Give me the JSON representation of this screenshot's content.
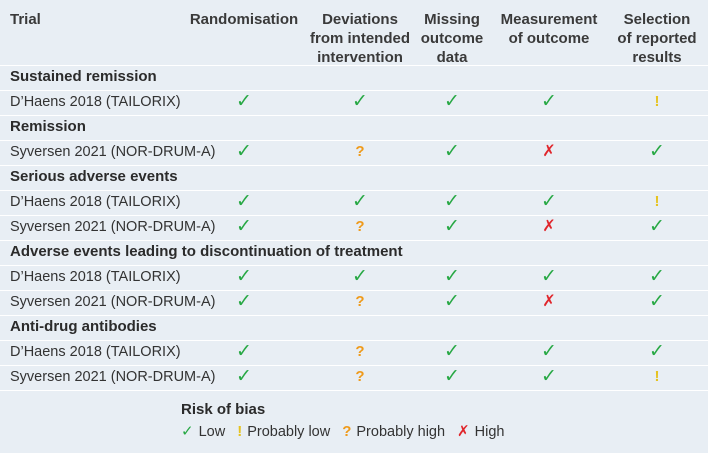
{
  "header": {
    "trial": "Trial",
    "columns": [
      {
        "lines": [
          "Randomisation"
        ]
      },
      {
        "lines": [
          "Deviations",
          "from intended",
          "intervention"
        ]
      },
      {
        "lines": [
          "Missing",
          "outcome",
          "data"
        ]
      },
      {
        "lines": [
          "Measurement",
          "of outcome"
        ]
      },
      {
        "lines": [
          "Selection",
          "of reported",
          "results"
        ]
      }
    ]
  },
  "symbols": {
    "low": {
      "glyph": "✓",
      "color": "#27a844"
    },
    "probably_low": {
      "glyph": "!",
      "color": "#e6c320"
    },
    "probably_high": {
      "glyph": "?",
      "color": "#ef9a1a"
    },
    "high": {
      "glyph": "✗",
      "color": "#e0252b"
    }
  },
  "sections": [
    {
      "title": "Sustained remission",
      "rows": [
        {
          "trial": "D’Haens 2018 (TAILORIX)",
          "ratings": [
            "low",
            "low",
            "low",
            "low",
            "probably_low"
          ]
        }
      ]
    },
    {
      "title": "Remission",
      "rows": [
        {
          "trial": "Syversen 2021 (NOR-DRUM-A)",
          "ratings": [
            "low",
            "probably_high",
            "low",
            "high",
            "low"
          ]
        }
      ]
    },
    {
      "title": "Serious adverse events",
      "rows": [
        {
          "trial": "D’Haens 2018 (TAILORIX)",
          "ratings": [
            "low",
            "low",
            "low",
            "low",
            "probably_low"
          ]
        },
        {
          "trial": "Syversen 2021 (NOR-DRUM-A)",
          "ratings": [
            "low",
            "probably_high",
            "low",
            "high",
            "low"
          ]
        }
      ]
    },
    {
      "title": "Adverse events leading to discontinuation of treatment",
      "rows": [
        {
          "trial": "D’Haens 2018 (TAILORIX)",
          "ratings": [
            "low",
            "low",
            "low",
            "low",
            "low"
          ]
        },
        {
          "trial": "Syversen 2021 (NOR-DRUM-A)",
          "ratings": [
            "low",
            "probably_high",
            "low",
            "high",
            "low"
          ]
        }
      ]
    },
    {
      "title": "Anti-drug antibodies",
      "rows": [
        {
          "trial": "D’Haens 2018 (TAILORIX)",
          "ratings": [
            "low",
            "probably_high",
            "low",
            "low",
            "low"
          ]
        },
        {
          "trial": "Syversen 2021 (NOR-DRUM-A)",
          "ratings": [
            "low",
            "probably_high",
            "low",
            "low",
            "probably_low"
          ]
        }
      ]
    }
  ],
  "legend": {
    "title": "Risk of bias",
    "items": [
      {
        "key": "low",
        "label": "Low"
      },
      {
        "key": "probably_low",
        "label": "Probably low"
      },
      {
        "key": "probably_high",
        "label": "Probably high"
      },
      {
        "key": "high",
        "label": "High"
      }
    ]
  }
}
